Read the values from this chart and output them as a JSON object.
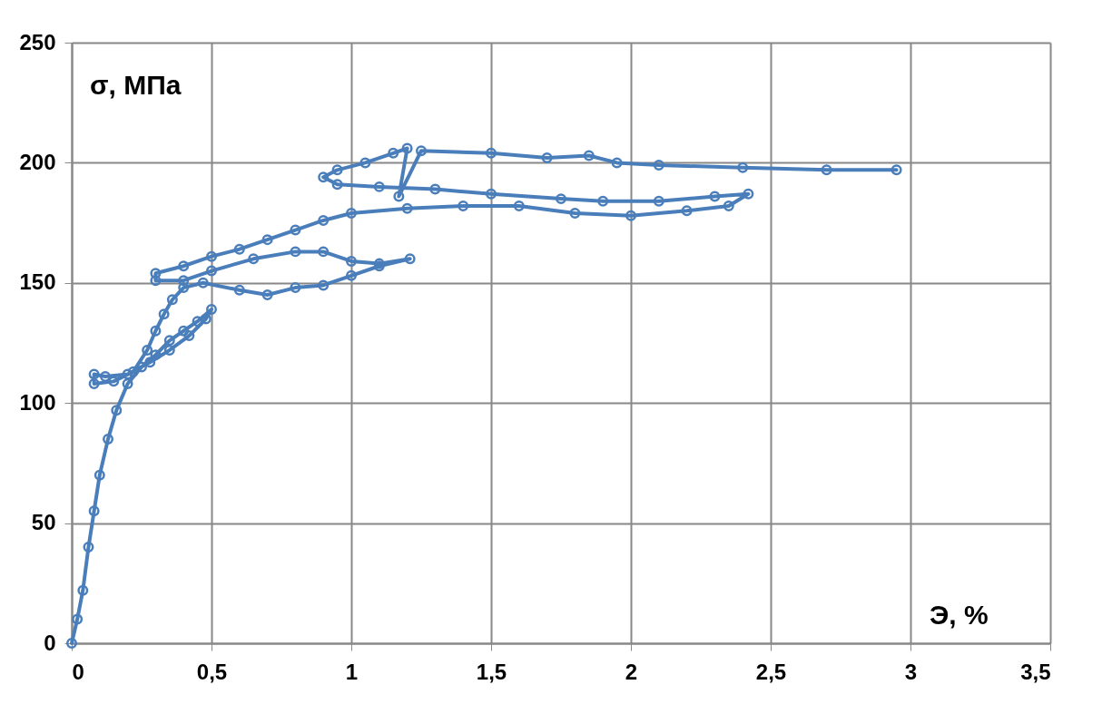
{
  "chart_data": {
    "type": "line",
    "xlabel": "Э, %",
    "ylabel": "σ, МПа",
    "x": [
      0,
      0.02,
      0.04,
      0.06,
      0.08,
      0.1,
      0.13,
      0.16,
      0.2,
      0.25,
      0.3,
      0.35,
      0.4,
      0.45,
      0.5,
      0.48,
      0.42,
      0.35,
      0.28,
      0.2,
      0.12,
      0.08,
      0.08,
      0.15,
      0.22,
      0.27,
      0.3,
      0.33,
      0.36,
      0.4,
      0.47,
      0.6,
      0.7,
      0.8,
      0.9,
      1.0,
      1.1,
      1.21,
      1.1,
      1.0,
      0.9,
      0.8,
      0.65,
      0.5,
      0.4,
      0.3,
      0.3,
      0.4,
      0.5,
      0.6,
      0.7,
      0.8,
      0.9,
      1.0,
      1.2,
      1.4,
      1.6,
      1.8,
      2.0,
      2.2,
      2.35,
      2.42,
      2.3,
      2.1,
      1.9,
      1.75,
      1.5,
      1.3,
      1.1,
      0.95,
      0.9,
      0.95,
      1.05,
      1.15,
      1.2,
      1.17,
      1.25,
      1.5,
      1.7,
      1.85,
      1.95,
      2.1,
      2.4,
      2.7,
      2.95
    ],
    "series": [
      {
        "color": "#4a7ebb",
        "values": [
          0,
          10,
          22,
          40,
          55,
          70,
          85,
          97,
          108,
          115,
          120,
          126,
          130,
          134,
          139,
          135,
          128,
          122,
          117,
          112,
          111,
          112,
          108,
          109,
          113,
          122,
          130,
          137,
          143,
          148,
          150,
          147,
          145,
          148,
          149,
          153,
          157,
          160,
          158,
          159,
          163,
          163,
          160,
          155,
          151,
          151,
          154,
          157,
          161,
          164,
          168,
          172,
          176,
          179,
          181,
          182,
          182,
          179,
          178,
          180,
          182,
          187,
          186,
          184,
          184,
          185,
          187,
          189,
          190,
          191,
          194,
          197,
          200,
          204,
          206,
          186,
          205,
          204,
          202,
          203,
          200,
          199,
          198,
          197,
          197
        ]
      }
    ],
    "xlim": [
      0,
      3.5
    ],
    "xticks": [
      0,
      {
        "value": 0.5,
        "label": "0,5"
      },
      1,
      {
        "value": 1.5,
        "label": "1,5"
      },
      2,
      {
        "value": 2.5,
        "label": "2,5"
      },
      3,
      {
        "value": 3.5,
        "label": "3,5"
      }
    ],
    "ylim": [
      0,
      250
    ],
    "yticks": [
      0,
      50,
      100,
      150,
      200,
      250
    ],
    "grid": true,
    "marker": "circle",
    "line_style": "solid"
  }
}
